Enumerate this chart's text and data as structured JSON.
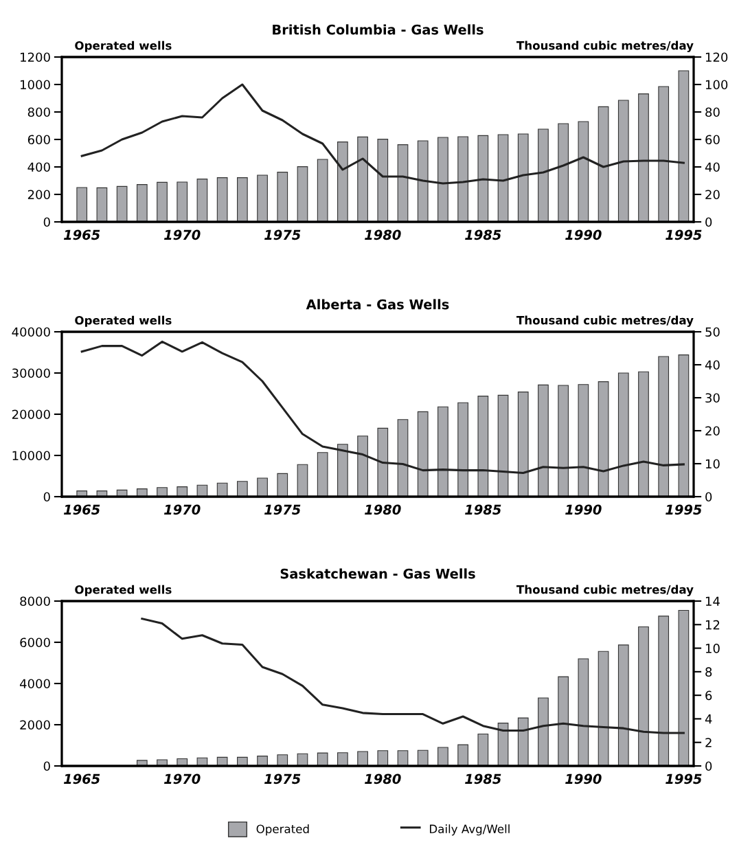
{
  "chart_data": [
    {
      "type": "bar",
      "title": "British Columbia - Gas Wells",
      "ylabel": "Operated wells",
      "y2label": "Thousand cubic metres/day",
      "x": [
        1965,
        1966,
        1967,
        1968,
        1969,
        1970,
        1971,
        1972,
        1973,
        1974,
        1975,
        1976,
        1977,
        1978,
        1979,
        1980,
        1981,
        1982,
        1983,
        1984,
        1985,
        1986,
        1987,
        1988,
        1989,
        1990,
        1991,
        1992,
        1993,
        1994,
        1995
      ],
      "xlim": [
        1964,
        1995.5
      ],
      "xticks": [
        1965,
        1970,
        1975,
        1980,
        1985,
        1990,
        1995
      ],
      "ylim": [
        0,
        1200
      ],
      "yticks": [
        0,
        200,
        400,
        600,
        800,
        1000,
        1200
      ],
      "y2lim": [
        0,
        120
      ],
      "y2ticks": [
        0,
        20,
        40,
        60,
        80,
        100,
        120
      ],
      "grid": false,
      "legend": "bottom",
      "series": [
        {
          "name": "Operated",
          "color": "#a7a8ac",
          "values": [
            250,
            248,
            258,
            272,
            288,
            290,
            312,
            322,
            322,
            340,
            362,
            402,
            455,
            582,
            618,
            602,
            562,
            590,
            615,
            620,
            628,
            635,
            640,
            675,
            715,
            730,
            838,
            885,
            932,
            985,
            1100
          ]
        },
        {
          "name": "Daily Avg/Well",
          "type": "line",
          "axis": "y2",
          "color": "#222222",
          "values": [
            48,
            52,
            60,
            65,
            73,
            77,
            76,
            90,
            100,
            81,
            74,
            64,
            57,
            38,
            46,
            33,
            33,
            30,
            28,
            29,
            31,
            30,
            34,
            36,
            41,
            47,
            40,
            44,
            44.5,
            44.5,
            43
          ]
        }
      ]
    },
    {
      "type": "bar",
      "title": "Alberta - Gas Wells",
      "ylabel": "Operated wells",
      "y2label": "Thousand cubic metres/day",
      "x": [
        1965,
        1966,
        1967,
        1968,
        1969,
        1970,
        1971,
        1972,
        1973,
        1974,
        1975,
        1976,
        1977,
        1978,
        1979,
        1980,
        1981,
        1982,
        1983,
        1984,
        1985,
        1986,
        1987,
        1988,
        1989,
        1990,
        1991,
        1992,
        1993,
        1994,
        1995
      ],
      "xlim": [
        1964,
        1995.5
      ],
      "xticks": [
        1965,
        1970,
        1975,
        1980,
        1985,
        1990,
        1995
      ],
      "ylim": [
        0,
        40000
      ],
      "yticks": [
        0,
        10000,
        20000,
        30000,
        40000
      ],
      "y2lim": [
        0,
        50
      ],
      "y2ticks": [
        0,
        10,
        20,
        30,
        40,
        50
      ],
      "grid": false,
      "legend": false,
      "series": [
        {
          "color": "#a7a8ac",
          "values": [
            1400,
            1400,
            1600,
            1900,
            2200,
            2400,
            2800,
            3300,
            3700,
            4500,
            5600,
            7800,
            10700,
            12700,
            14700,
            16600,
            18700,
            20600,
            21800,
            22800,
            24400,
            24600,
            25400,
            27100,
            27000,
            27200,
            27900,
            30000,
            30300,
            34000,
            34400
          ]
        },
        {
          "type": "line",
          "axis": "y2",
          "color": "#222222",
          "values": [
            44,
            45.7,
            45.7,
            42.8,
            47,
            44,
            46.8,
            43.5,
            40.8,
            35,
            27,
            19,
            15.2,
            14,
            12.8,
            10.3,
            9.9,
            8,
            8.2,
            8,
            8,
            7.6,
            7.2,
            9,
            8.7,
            9,
            7.7,
            9.4,
            10.6,
            9.5,
            9.8
          ]
        }
      ]
    },
    {
      "type": "bar",
      "title": "Saskatchewan - Gas Wells",
      "ylabel": "Operated wells",
      "y2label": "Thousand cubic metres/day",
      "x": [
        1968,
        1969,
        1970,
        1971,
        1972,
        1973,
        1974,
        1975,
        1976,
        1977,
        1978,
        1979,
        1980,
        1981,
        1982,
        1983,
        1984,
        1985,
        1986,
        1987,
        1988,
        1989,
        1990,
        1991,
        1992,
        1993,
        1994,
        1995
      ],
      "xlim": [
        1964,
        1995.5
      ],
      "xticks": [
        1965,
        1970,
        1975,
        1980,
        1985,
        1990,
        1995
      ],
      "ylim": [
        0,
        8000
      ],
      "yticks": [
        0,
        2000,
        4000,
        6000,
        8000
      ],
      "y2lim": [
        0,
        14
      ],
      "y2ticks": [
        0,
        2,
        4,
        6,
        8,
        10,
        12,
        14
      ],
      "grid": false,
      "series": [
        {
          "color": "#a7a8ac",
          "values": [
            270,
            300,
            350,
            390,
            420,
            420,
            480,
            540,
            590,
            630,
            640,
            700,
            740,
            740,
            760,
            900,
            1030,
            1550,
            2080,
            2330,
            3300,
            4330,
            5200,
            5560,
            5870,
            6750,
            7270,
            7550
          ]
        },
        {
          "type": "line",
          "axis": "y2",
          "color": "#222222",
          "values": [
            12.5,
            12.1,
            10.8,
            11.1,
            10.4,
            10.3,
            8.4,
            7.8,
            6.8,
            5.2,
            4.9,
            4.5,
            4.4,
            4.4,
            4.4,
            3.6,
            4.2,
            3.4,
            3.0,
            3.0,
            3.4,
            3.6,
            3.4,
            3.3,
            3.2,
            2.9,
            2.8,
            2.8
          ]
        }
      ]
    }
  ]
}
